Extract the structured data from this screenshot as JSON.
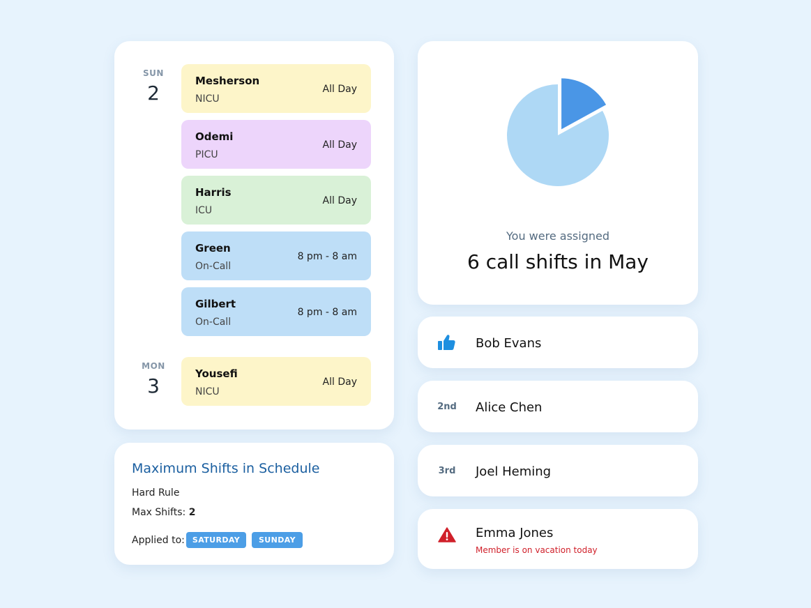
{
  "schedule": {
    "days": [
      {
        "weekday": "SUN",
        "date": "2",
        "shifts": [
          {
            "name": "Mesherson",
            "unit": "NICU",
            "time": "All Day",
            "color": "#fdf5c9"
          },
          {
            "name": "Odemi",
            "unit": "PICU",
            "time": "All Day",
            "color": "#edd5fb"
          },
          {
            "name": "Harris",
            "unit": "ICU",
            "time": "All Day",
            "color": "#d9f1d7"
          },
          {
            "name": "Green",
            "unit": "On-Call",
            "time": "8 pm - 8 am",
            "color": "#bedef7"
          },
          {
            "name": "Gilbert",
            "unit": "On-Call",
            "time": "8 pm - 8 am",
            "color": "#bedef7"
          }
        ]
      },
      {
        "weekday": "MON",
        "date": "3",
        "shifts": [
          {
            "name": "Yousefi",
            "unit": "NICU",
            "time": "All Day",
            "color": "#fdf5c9"
          }
        ]
      }
    ]
  },
  "rule": {
    "title": "Maximum Shifts in Schedule",
    "type": "Hard Rule",
    "max_label": "Max Shifts:",
    "max_value": "2",
    "applied_label": "Applied to:",
    "tags": [
      "SATURDAY",
      "SUNDAY"
    ],
    "tag_color": "#4c9ee6"
  },
  "summary": {
    "subtitle": "You were assigned",
    "headline": "6 call shifts in May",
    "pie": {
      "highlight_fraction": 0.17,
      "highlight_color": "#4a96e6",
      "rest_color": "#aed8f5"
    }
  },
  "members": [
    {
      "icon": "thumbs-up-icon",
      "rank": "",
      "name": "Bob Evans",
      "note": ""
    },
    {
      "icon": "",
      "rank": "2nd",
      "name": "Alice Chen",
      "note": ""
    },
    {
      "icon": "",
      "rank": "3rd",
      "name": "Joel Heming",
      "note": ""
    },
    {
      "icon": "warning-icon",
      "rank": "",
      "name": "Emma Jones",
      "note": "Member is on vacation today"
    }
  ],
  "colors": {
    "background": "#e7f3fd",
    "rule_title": "#1b5fa0",
    "warning": "#d0202a",
    "thumbs_up": "#1e8fe0"
  }
}
